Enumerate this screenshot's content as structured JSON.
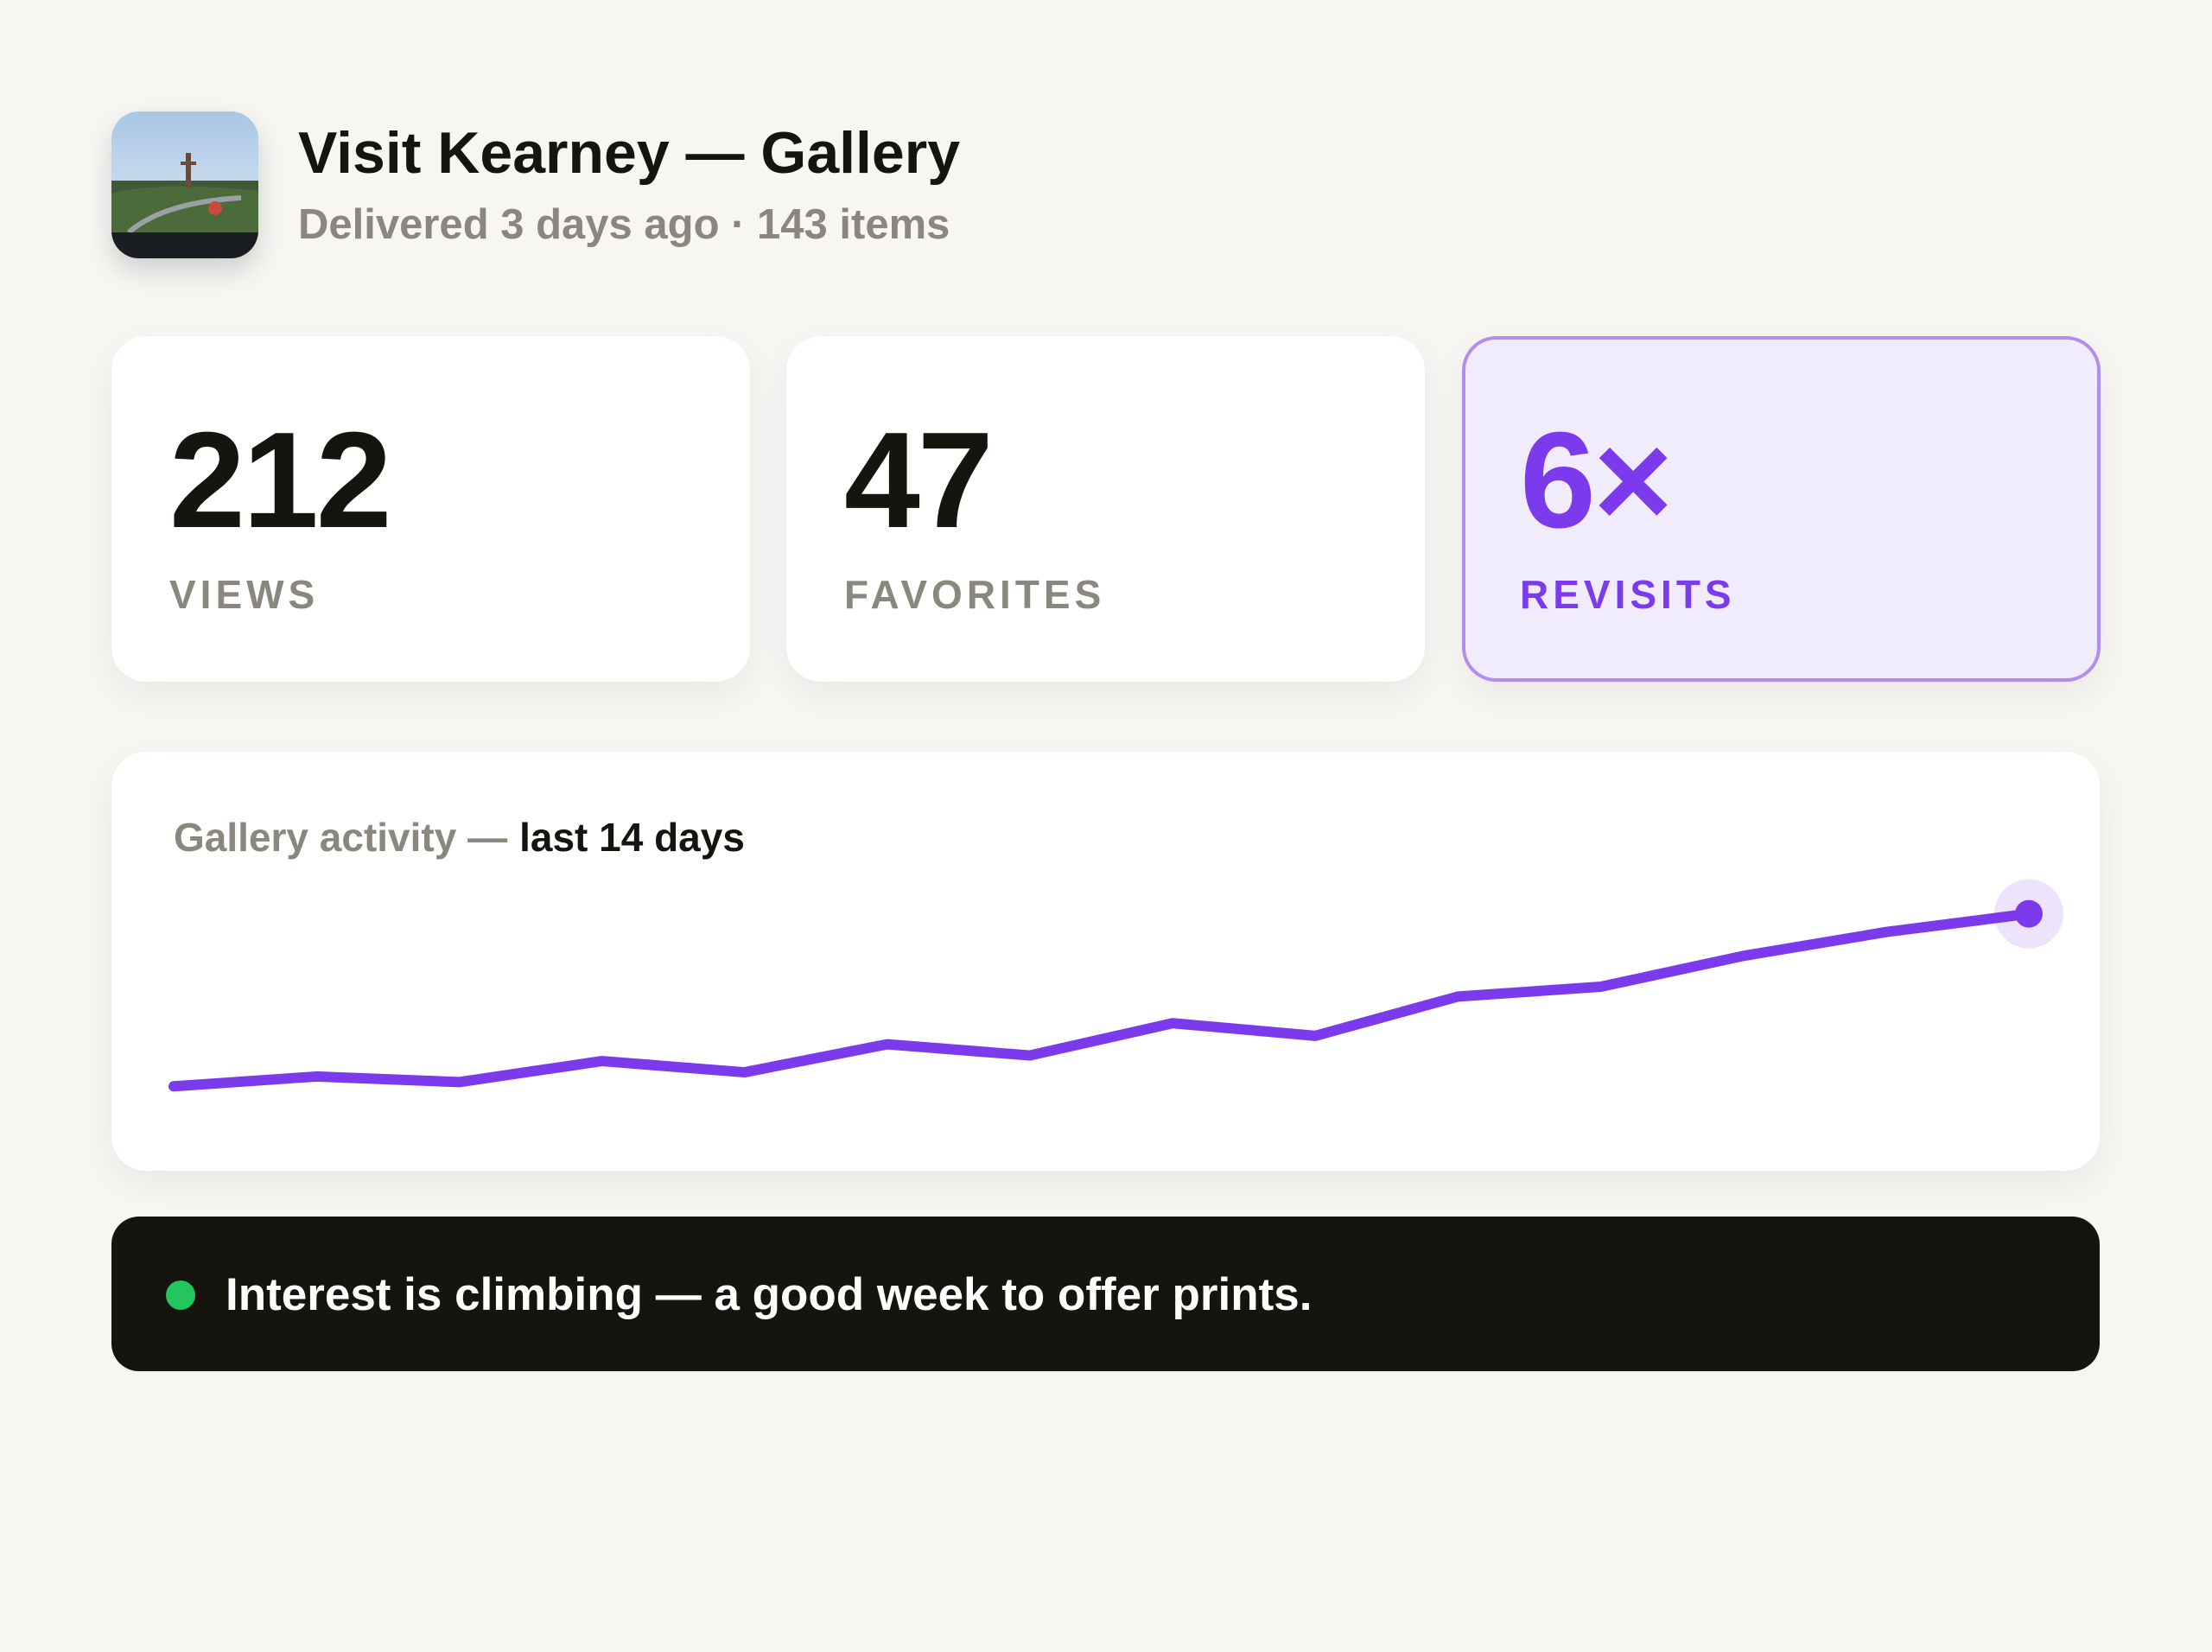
{
  "header": {
    "title": "Visit Kearney — Gallery",
    "subtitle": "Delivered 3 days ago · 143 items"
  },
  "stats": [
    {
      "value": 212,
      "label": "VIEWS"
    },
    {
      "value": 47,
      "label": "FAVORITES"
    },
    {
      "value": "6×",
      "label": "REVISITS",
      "highlight": true
    }
  ],
  "chart_data": {
    "type": "line",
    "title": "Gallery activity —",
    "subtitle": "last 14 days",
    "values": [
      30,
      37,
      33,
      48,
      40,
      60,
      52,
      75,
      66,
      94,
      101,
      123,
      140,
      153
    ],
    "ylim": [
      0,
      170
    ],
    "color": "#7c3aed"
  },
  "banner": {
    "text": "Interest is climbing — a good week to offer prints.",
    "dot_color": "#22c55e"
  }
}
